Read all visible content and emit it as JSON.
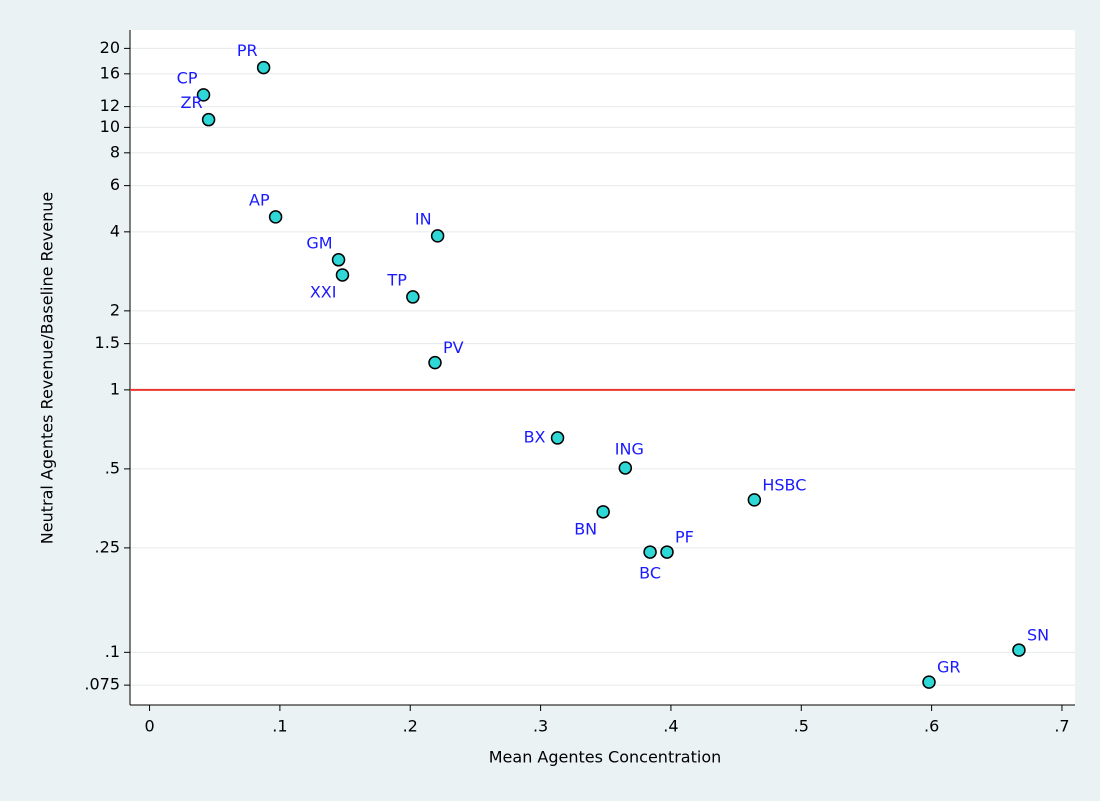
{
  "chart_data": {
    "type": "scatter",
    "x_label": "Mean Agentes Concentration",
    "y_label": "Neutral Agentes Revenue/Baseline Revenue",
    "log_y": true,
    "xlim": [
      -0.015,
      0.71
    ],
    "ylim": [
      0.063,
      23.5
    ],
    "xticks": [
      0,
      {
        "value": 0.1,
        "label": ".1"
      },
      {
        "value": 0.2,
        "label": ".2"
      },
      {
        "value": 0.3,
        "label": ".3"
      },
      {
        "value": 0.4,
        "label": ".4"
      },
      {
        "value": 0.5,
        "label": ".5"
      },
      {
        "value": 0.6,
        "label": ".6"
      },
      {
        "value": 0.7,
        "label": ".7"
      }
    ],
    "yticks": [
      20,
      16,
      12,
      10,
      8,
      6,
      4,
      2,
      1.5,
      1,
      {
        "value": 0.5,
        "label": ".5"
      },
      {
        "value": 0.25,
        "label": ".25"
      },
      {
        "value": 0.1,
        "label": ".1"
      },
      {
        "value": 0.075,
        "label": ".075"
      }
    ],
    "grid": true,
    "refline": 1,
    "refline_color": "#e8382f",
    "color": "#2fd7d7",
    "label_color": "#1a1aff",
    "labels": [
      "PR",
      "CP",
      "ZR",
      "AP",
      "IN",
      "GM",
      "XXI",
      "TP",
      "PV",
      "BX",
      "ING",
      "BN",
      "HSBC",
      "BC",
      "PF",
      "GR",
      "SN"
    ],
    "x": [
      0.0875,
      0.0414,
      0.0453,
      0.0967,
      0.221,
      0.145,
      0.148,
      0.202,
      0.219,
      0.313,
      0.365,
      0.348,
      0.464,
      0.384,
      0.397,
      0.598,
      0.667
    ],
    "y": [
      16.9,
      13.3,
      10.7,
      4.56,
      3.86,
      3.13,
      2.74,
      2.26,
      1.27,
      0.656,
      0.504,
      0.343,
      0.381,
      0.241,
      0.241,
      0.077,
      0.102
    ]
  }
}
